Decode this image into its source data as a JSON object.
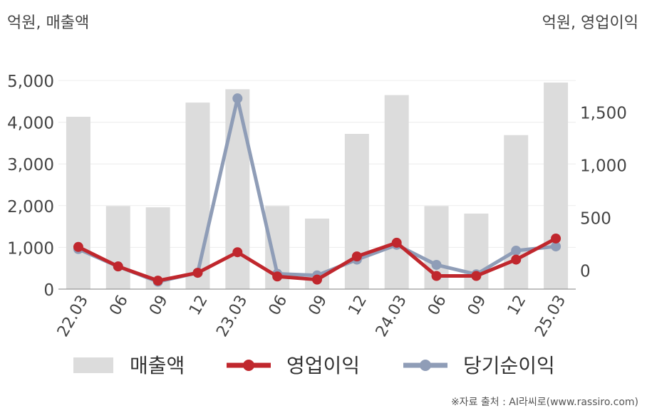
{
  "chart_data": {
    "type": "bar",
    "left_unit": "억원, 매출액",
    "right_unit": "억원, 영업이익",
    "categories": [
      "22.03",
      "06",
      "09",
      "12",
      "23.03",
      "06",
      "09",
      "12",
      "24.03",
      "06",
      "09",
      "12",
      "25.03"
    ],
    "left_axis": {
      "min": 0,
      "max": 5000,
      "ticks": [
        0,
        1000,
        2000,
        3000,
        4000,
        5000
      ],
      "tick_labels": [
        "0",
        "1,000",
        "2,000",
        "3,000",
        "4,000",
        "5,000"
      ]
    },
    "right_axis": {
      "min": -180,
      "max": 1800,
      "ticks": [
        0,
        500,
        1000,
        1500
      ],
      "tick_labels": [
        "0",
        "500",
        "1,000",
        "1,500"
      ]
    },
    "series": [
      {
        "name": "매출액",
        "kind": "bar",
        "axis": "left",
        "color": "#dcdcdc",
        "values": [
          4130,
          1990,
          1960,
          4470,
          4790,
          1990,
          1690,
          3720,
          4650,
          1990,
          1810,
          3690,
          4950
        ]
      },
      {
        "name": "영업이익",
        "kind": "line",
        "axis": "right",
        "color": "#c0272d",
        "values": [
          220,
          35,
          -100,
          -25,
          170,
          -60,
          -90,
          130,
          260,
          -55,
          -55,
          100,
          300
        ]
      },
      {
        "name": "당기순이익",
        "kind": "line",
        "axis": "right",
        "color": "#8f9db7",
        "values": [
          200,
          35,
          -110,
          -25,
          1630,
          -35,
          -50,
          100,
          240,
          50,
          -40,
          185,
          225
        ]
      }
    ],
    "source": "※자료 출처 : AI라씨로(www.rassiro.com)"
  }
}
